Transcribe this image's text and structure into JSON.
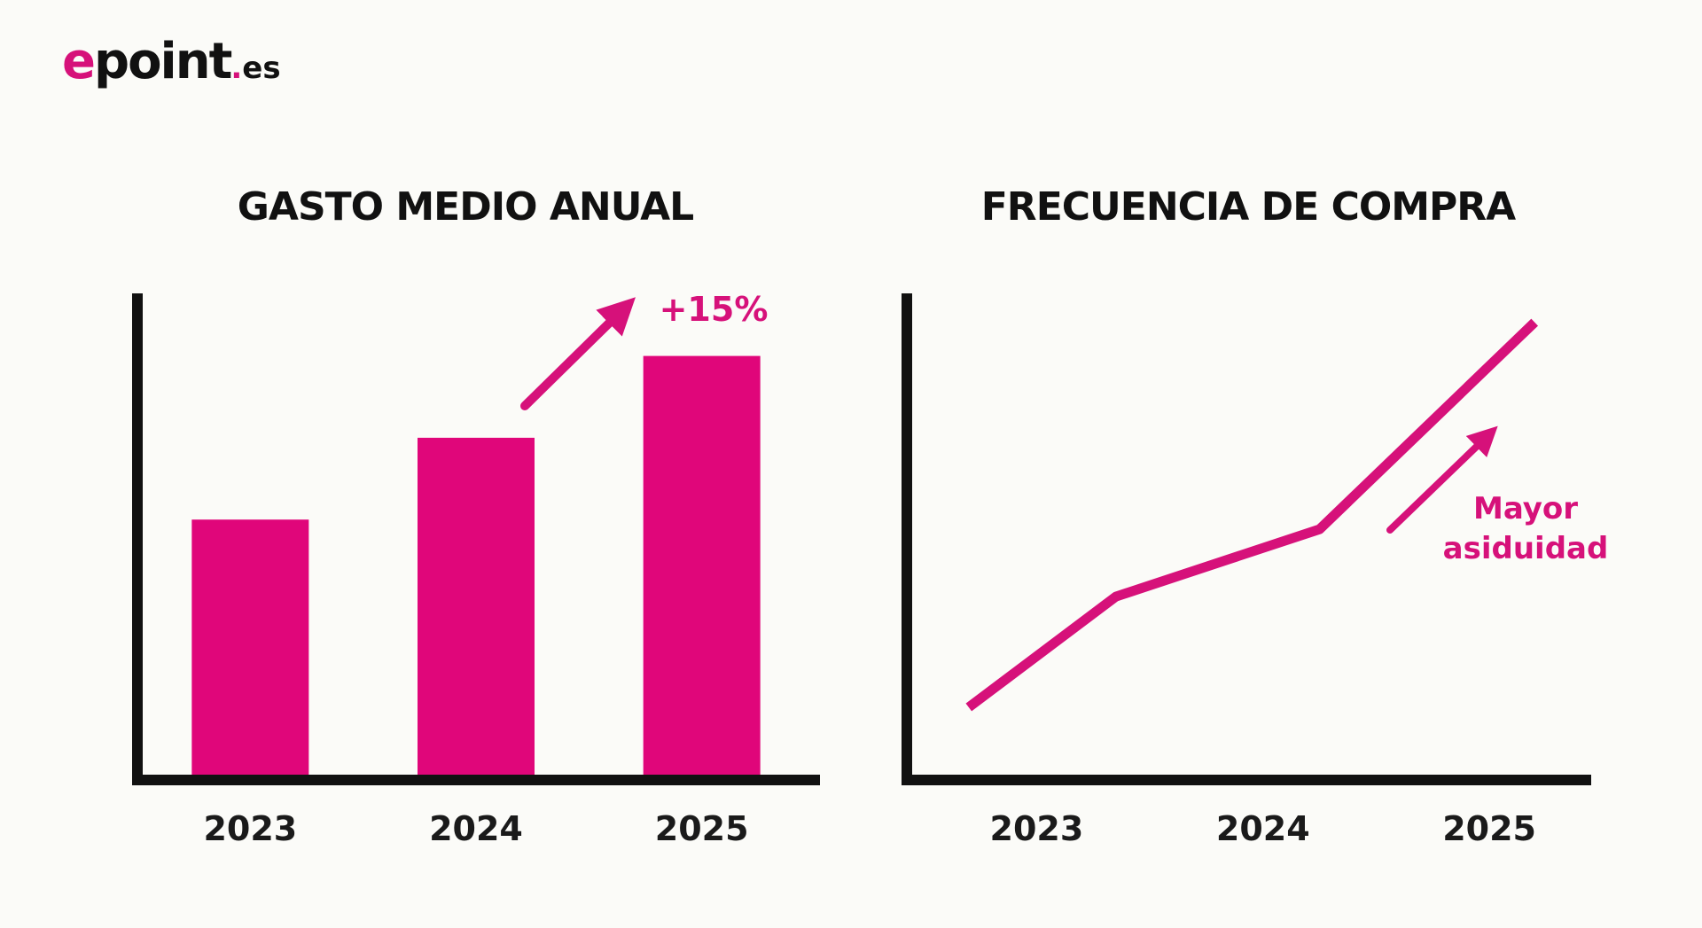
{
  "brand": {
    "name": "epoint",
    "name_first_letter": "e",
    "name_rest": "point",
    "tld_dot": ".",
    "tld": "es",
    "accent_color": "#d6117a"
  },
  "chart_data": [
    {
      "type": "bar",
      "title": "GASTO MEDIO ANUAL",
      "categories": [
        "2023",
        "2024",
        "2025"
      ],
      "values": [
        53,
        70,
        87
      ],
      "ylim": [
        0,
        100
      ],
      "xlabel": "",
      "ylabel": "",
      "grid": false,
      "annotation": "+15%",
      "color": "#e0067a"
    },
    {
      "type": "line",
      "title": "FRECUENCIA DE COMPRA",
      "x": [
        2022.7,
        2023.35,
        2024.25,
        2025.2
      ],
      "y": [
        14,
        37,
        51,
        94
      ],
      "categories": [
        "2023",
        "2024",
        "2025"
      ],
      "xlim": [
        2022.45,
        2025.45
      ],
      "ylim": [
        0,
        100
      ],
      "xlabel": "",
      "ylabel": "",
      "grid": false,
      "annotation": "Mayor asiduidad",
      "annotation_lines": [
        "Mayor",
        "asiduidad"
      ],
      "color": "#d6117a"
    }
  ]
}
